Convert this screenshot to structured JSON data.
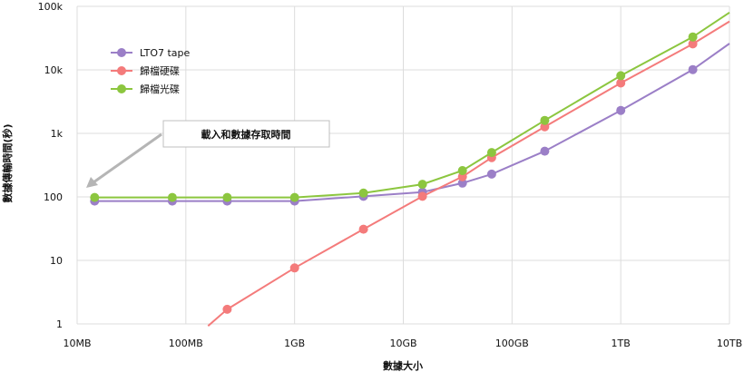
{
  "chart_data": {
    "type": "line",
    "xlabel": "數據大小",
    "ylabel": "數據傳輸時間(秒)",
    "x_scale": "log",
    "y_scale": "log",
    "x_ticks": [
      {
        "value": 10000000,
        "label": "10MB"
      },
      {
        "value": 100000000,
        "label": "100MB"
      },
      {
        "value": 1000000000,
        "label": "1GB"
      },
      {
        "value": 10000000000,
        "label": "10GB"
      },
      {
        "value": 100000000000,
        "label": "100GB"
      },
      {
        "value": 1000000000000,
        "label": "1TB"
      },
      {
        "value": 10000000000000,
        "label": "10TB"
      }
    ],
    "y_ticks": [
      {
        "value": 1,
        "label": "1"
      },
      {
        "value": 10,
        "label": "10"
      },
      {
        "value": 100,
        "label": "100"
      },
      {
        "value": 1000,
        "label": "1k"
      },
      {
        "value": 10000,
        "label": "10k"
      },
      {
        "value": 100000,
        "label": "100k"
      }
    ],
    "xlim": [
      10000000,
      10000000000000
    ],
    "ylim": [
      1,
      100000
    ],
    "grid": true,
    "legend_position": "top-left",
    "annotation": "載入和數據存取時間",
    "series": [
      {
        "name": "LTO7 tape",
        "color": "#9b7fc7",
        "points": [
          [
            14500000,
            86
          ],
          [
            75000000,
            86
          ],
          [
            240000000,
            86
          ],
          [
            1000000000,
            86
          ],
          [
            4300000000,
            102
          ],
          [
            15000000000,
            119
          ],
          [
            35000000000,
            165
          ],
          [
            65000000000,
            228
          ],
          [
            200000000000,
            525
          ],
          [
            1000000000000,
            2300
          ],
          [
            4600000000000,
            10100
          ]
        ],
        "markers": true,
        "end": [
          10000000000000,
          26000
        ]
      },
      {
        "name": "歸檔硬碟",
        "color": "#f47b7b",
        "points": [
          [
            240000000,
            1.7
          ],
          [
            1000000000,
            7.6
          ],
          [
            4300000000,
            31
          ],
          [
            15000000000,
            102
          ],
          [
            35000000000,
            208
          ],
          [
            65000000000,
            415
          ],
          [
            200000000000,
            1270
          ],
          [
            1000000000000,
            6200
          ],
          [
            4600000000000,
            25600
          ]
        ],
        "markers": true,
        "start": [
          160000000,
          0.93
        ],
        "end": [
          10000000000000,
          58000
        ]
      },
      {
        "name": "歸檔光碟",
        "color": "#8cc63f",
        "points": [
          [
            14500000,
            98
          ],
          [
            75000000,
            98
          ],
          [
            240000000,
            98
          ],
          [
            1000000000,
            98
          ],
          [
            4300000000,
            115
          ],
          [
            15000000000,
            158
          ],
          [
            35000000000,
            260
          ],
          [
            65000000000,
            500
          ],
          [
            200000000000,
            1600
          ],
          [
            1000000000000,
            8100
          ],
          [
            4600000000000,
            33000
          ]
        ],
        "markers": true,
        "end": [
          10000000000000,
          80000
        ]
      }
    ]
  }
}
